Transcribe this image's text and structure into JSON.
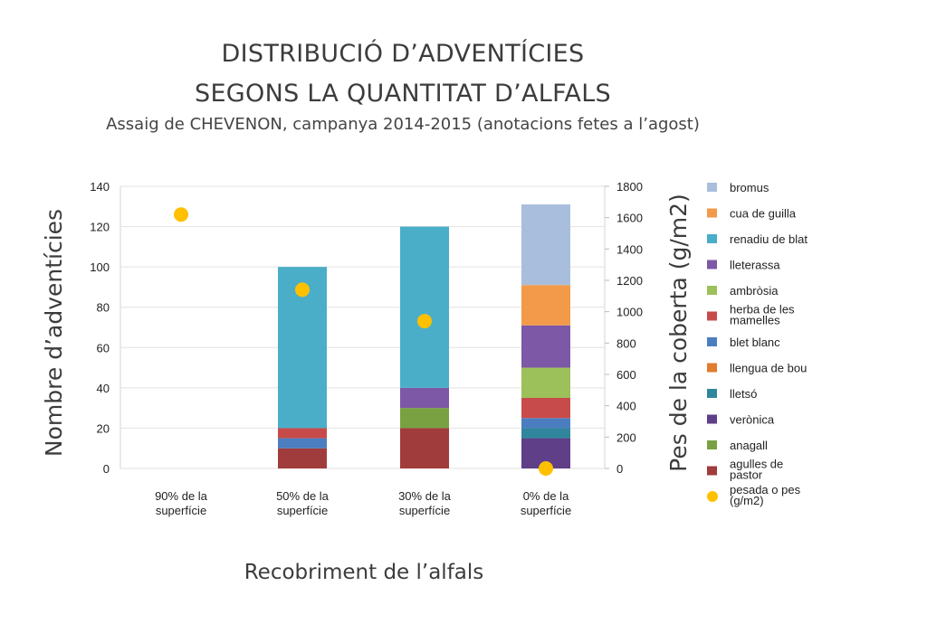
{
  "title_line1": "DISTRIBUCIÓ D’ADVENTÍCIES",
  "title_line2": "SEGONS LA QUANTITAT D’ALFALS",
  "subtitle": "Assaig de CHEVENON, campanya 2014-2015 (anotacions fetes a l’agost)",
  "chart_data": {
    "type": "bar",
    "stacked": true,
    "xlabel": "Recobriment de l’alfals",
    "ylabel": "Nombre d’adventícies",
    "ylabel_right": "Pes de la coberta (g/m2)",
    "ylim": [
      0,
      140
    ],
    "ylim_right": [
      0,
      1800
    ],
    "yticks": [
      0,
      20,
      40,
      60,
      80,
      100,
      120,
      140
    ],
    "yticks_right": [
      0,
      200,
      400,
      600,
      800,
      1000,
      1200,
      1400,
      1600,
      1800
    ],
    "grid": true,
    "legend_position": "right",
    "categories": [
      [
        "90% de la",
        "superfície"
      ],
      [
        "50% de la",
        "superfície"
      ],
      [
        "30% de la",
        "superfície"
      ],
      [
        "0% de la",
        "superfície"
      ]
    ],
    "series": [
      {
        "name": "agulles de pastor",
        "color": "#a13c3c",
        "values": [
          0,
          10,
          20,
          0
        ]
      },
      {
        "name": "anagall",
        "color": "#79a142",
        "values": [
          0,
          0,
          10,
          0
        ]
      },
      {
        "name": "verònica",
        "color": "#5e3f88",
        "values": [
          0,
          0,
          0,
          15
        ]
      },
      {
        "name": "lletsó",
        "color": "#30869c",
        "values": [
          0,
          0,
          0,
          5
        ]
      },
      {
        "name": "llengua de bou",
        "color": "#e07c2e",
        "values": [
          0,
          0,
          0,
          0
        ]
      },
      {
        "name": "blet blanc",
        "color": "#4a7ec0",
        "values": [
          0,
          5,
          0,
          5
        ]
      },
      {
        "name": "herba de les mamelles",
        "color": "#c84b4b",
        "values": [
          0,
          5,
          0,
          10
        ]
      },
      {
        "name": "ambròsia",
        "color": "#9cc05a",
        "values": [
          0,
          0,
          0,
          15
        ]
      },
      {
        "name": "lleterassa",
        "color": "#7c58a6",
        "values": [
          0,
          0,
          10,
          21
        ]
      },
      {
        "name": "renadiu de blat",
        "color": "#4aaec8",
        "values": [
          0,
          80,
          80,
          0
        ]
      },
      {
        "name": "cua de guilla",
        "color": "#f29a4a",
        "values": [
          0,
          0,
          0,
          20
        ]
      },
      {
        "name": "bromus",
        "color": "#a8bedc",
        "values": [
          0,
          0,
          0,
          40
        ]
      }
    ],
    "stack_overrides": {
      "note": ""
    },
    "weight_series": {
      "name": "pesada o pes (g/m2)",
      "color": "#ffc000",
      "values": [
        1620,
        1140,
        940,
        0
      ]
    },
    "legend": [
      {
        "label": [
          "bromus"
        ],
        "color": "#a8bedc"
      },
      {
        "label": [
          "cua de guilla"
        ],
        "color": "#f29a4a"
      },
      {
        "label": [
          "renadiu de blat"
        ],
        "color": "#4aaec8"
      },
      {
        "label": [
          "lleterassa"
        ],
        "color": "#7c58a6"
      },
      {
        "label": [
          "ambròsia"
        ],
        "color": "#9cc05a"
      },
      {
        "label": [
          "herba de les",
          "mamelles"
        ],
        "color": "#c84b4b"
      },
      {
        "label": [
          "blet blanc"
        ],
        "color": "#4a7ec0"
      },
      {
        "label": [
          "llengua de bou"
        ],
        "color": "#e07c2e"
      },
      {
        "label": [
          "lletsó"
        ],
        "color": "#30869c"
      },
      {
        "label": [
          "verònica"
        ],
        "color": "#5e3f88"
      },
      {
        "label": [
          "anagall"
        ],
        "color": "#79a142"
      },
      {
        "label": [
          "agulles de",
          "pastor"
        ],
        "color": "#a13c3c"
      },
      {
        "label": [
          "pesada o pes",
          "(g/m2)"
        ],
        "color": "#ffc000",
        "marker": "circle"
      }
    ]
  }
}
